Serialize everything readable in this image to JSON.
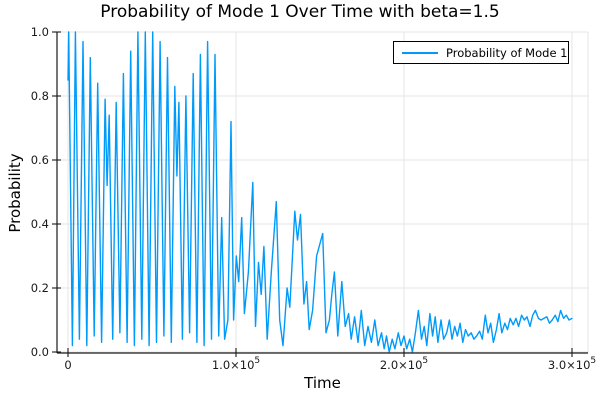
{
  "colors": {
    "series": "#009afa",
    "grid": "#e5e5e5",
    "axis": "#1a1a1a",
    "text": "#1a1a1a",
    "background": "#ffffff",
    "legend_border": "#000000"
  },
  "legend": {
    "label": "Probability of Mode 1"
  },
  "chart_data": {
    "type": "line",
    "title": "Probability of Mode 1 Over Time with beta=1.5",
    "xlabel": "Time",
    "ylabel": "Probability",
    "xlim": [
      0,
      300000
    ],
    "ylim": [
      0.0,
      1.0
    ],
    "grid": true,
    "legend_position": "top-right",
    "x_ticks": [
      {
        "v": 0,
        "label": "0"
      },
      {
        "v": 100000,
        "label": "1.0×10^5"
      },
      {
        "v": 200000,
        "label": "2.0×10^5"
      },
      {
        "v": 300000,
        "label": "3.0×10^5"
      }
    ],
    "y_ticks": [
      {
        "v": 0.0,
        "label": "0.0"
      },
      {
        "v": 0.2,
        "label": "0.2"
      },
      {
        "v": 0.4,
        "label": "0.4"
      },
      {
        "v": 0.6,
        "label": "0.6"
      },
      {
        "v": 0.8,
        "label": "0.8"
      },
      {
        "v": 1.0,
        "label": "1.0"
      }
    ],
    "series": [
      {
        "name": "Probability of Mode 1",
        "color": "#009afa",
        "points": [
          [
            0,
            0.85
          ],
          [
            400,
            1.0
          ],
          [
            2600,
            0.02
          ],
          [
            4400,
            1.0
          ],
          [
            6800,
            0.04
          ],
          [
            8900,
            0.97
          ],
          [
            11200,
            0.02
          ],
          [
            13300,
            0.92
          ],
          [
            15600,
            0.05
          ],
          [
            17700,
            0.84
          ],
          [
            20000,
            0.03
          ],
          [
            22100,
            0.79
          ],
          [
            23300,
            0.52
          ],
          [
            24500,
            0.74
          ],
          [
            26600,
            0.04
          ],
          [
            28700,
            0.78
          ],
          [
            30900,
            0.06
          ],
          [
            33000,
            0.87
          ],
          [
            35200,
            0.03
          ],
          [
            37300,
            0.94
          ],
          [
            39500,
            0.02
          ],
          [
            41600,
            1.0
          ],
          [
            43900,
            0.04
          ],
          [
            46000,
            1.0
          ],
          [
            48300,
            0.02
          ],
          [
            50400,
            1.0
          ],
          [
            52700,
            0.03
          ],
          [
            54800,
            0.97
          ],
          [
            57100,
            0.05
          ],
          [
            59200,
            0.92
          ],
          [
            61500,
            0.03
          ],
          [
            63600,
            0.83
          ],
          [
            64800,
            0.55
          ],
          [
            66000,
            0.78
          ],
          [
            68100,
            0.04
          ],
          [
            70200,
            0.8
          ],
          [
            72400,
            0.06
          ],
          [
            74500,
            0.87
          ],
          [
            76700,
            0.03
          ],
          [
            78800,
            0.93
          ],
          [
            81000,
            0.02
          ],
          [
            83100,
            0.97
          ],
          [
            85400,
            0.04
          ],
          [
            87500,
            0.93
          ],
          [
            89700,
            0.05
          ],
          [
            91500,
            0.42
          ],
          [
            93200,
            0.04
          ],
          [
            95200,
            0.1
          ],
          [
            97000,
            0.72
          ],
          [
            98600,
            0.1
          ],
          [
            100200,
            0.3
          ],
          [
            101600,
            0.22
          ],
          [
            103400,
            0.42
          ],
          [
            105000,
            0.12
          ],
          [
            107400,
            0.25
          ],
          [
            110000,
            0.53
          ],
          [
            111600,
            0.08
          ],
          [
            113400,
            0.28
          ],
          [
            115000,
            0.18
          ],
          [
            116600,
            0.33
          ],
          [
            118600,
            0.04
          ],
          [
            121000,
            0.25
          ],
          [
            124000,
            0.47
          ],
          [
            126000,
            0.1
          ],
          [
            128000,
            0.02
          ],
          [
            130400,
            0.2
          ],
          [
            132000,
            0.14
          ],
          [
            135000,
            0.44
          ],
          [
            136600,
            0.35
          ],
          [
            138400,
            0.43
          ],
          [
            140400,
            0.15
          ],
          [
            142000,
            0.22
          ],
          [
            143600,
            0.07
          ],
          [
            145600,
            0.13
          ],
          [
            148000,
            0.3
          ],
          [
            151600,
            0.37
          ],
          [
            153600,
            0.06
          ],
          [
            155600,
            0.1
          ],
          [
            157000,
            0.18
          ],
          [
            158600,
            0.25
          ],
          [
            160600,
            0.05
          ],
          [
            163000,
            0.22
          ],
          [
            165000,
            0.08
          ],
          [
            167000,
            0.12
          ],
          [
            168600,
            0.04
          ],
          [
            170600,
            0.11
          ],
          [
            172600,
            0.03
          ],
          [
            174600,
            0.13
          ],
          [
            176600,
            0.02
          ],
          [
            178600,
            0.08
          ],
          [
            180600,
            0.03
          ],
          [
            182600,
            0.1
          ],
          [
            184600,
            0.02
          ],
          [
            186600,
            0.06
          ],
          [
            188200,
            0.01
          ],
          [
            189600,
            0.05
          ],
          [
            191200,
            0.0
          ],
          [
            193000,
            0.04
          ],
          [
            194600,
            0.01
          ],
          [
            196600,
            0.06
          ],
          [
            198200,
            0.02
          ],
          [
            200000,
            0.05
          ],
          [
            201600,
            0.01
          ],
          [
            203400,
            0.04
          ],
          [
            205000,
            0.0
          ],
          [
            206800,
            0.06
          ],
          [
            208600,
            0.13
          ],
          [
            210400,
            0.04
          ],
          [
            212000,
            0.08
          ],
          [
            213600,
            0.02
          ],
          [
            215400,
            0.12
          ],
          [
            217000,
            0.05
          ],
          [
            218600,
            0.11
          ],
          [
            220200,
            0.03
          ],
          [
            222000,
            0.1
          ],
          [
            223600,
            0.04
          ],
          [
            225400,
            0.06
          ],
          [
            227000,
            0.1
          ],
          [
            228600,
            0.04
          ],
          [
            230200,
            0.08
          ],
          [
            231800,
            0.05
          ],
          [
            233400,
            0.09
          ],
          [
            235000,
            0.03
          ],
          [
            236600,
            0.07
          ],
          [
            238200,
            0.05
          ],
          [
            240000,
            0.06
          ],
          [
            241600,
            0.04
          ],
          [
            243200,
            0.05
          ],
          [
            245000,
            0.065
          ],
          [
            246600,
            0.04
          ],
          [
            248400,
            0.115
          ],
          [
            250000,
            0.06
          ],
          [
            251600,
            0.09
          ],
          [
            253200,
            0.03
          ],
          [
            255000,
            0.07
          ],
          [
            256600,
            0.12
          ],
          [
            258200,
            0.06
          ],
          [
            260000,
            0.09
          ],
          [
            261600,
            0.07
          ],
          [
            263200,
            0.105
          ],
          [
            265000,
            0.085
          ],
          [
            266600,
            0.105
          ],
          [
            268200,
            0.08
          ],
          [
            270000,
            0.115
          ],
          [
            271600,
            0.1
          ],
          [
            273200,
            0.11
          ],
          [
            275000,
            0.08
          ],
          [
            276600,
            0.115
          ],
          [
            278200,
            0.13
          ],
          [
            280000,
            0.105
          ],
          [
            281600,
            0.1
          ],
          [
            283200,
            0.105
          ],
          [
            285000,
            0.11
          ],
          [
            286600,
            0.09
          ],
          [
            288200,
            0.1
          ],
          [
            290000,
            0.115
          ],
          [
            291600,
            0.095
          ],
          [
            293200,
            0.13
          ],
          [
            295000,
            0.105
          ],
          [
            296600,
            0.115
          ],
          [
            298200,
            0.1
          ],
          [
            300000,
            0.105
          ]
        ]
      }
    ]
  }
}
